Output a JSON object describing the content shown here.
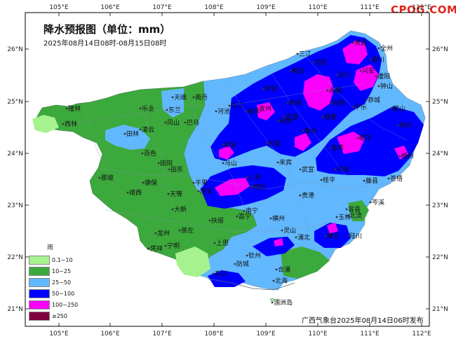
{
  "brand": "CPQG.COM",
  "map": {
    "title": "降水预报图（单位：mm）",
    "subtitle": "2025年08月14日08时-08月15日08时",
    "issued_by": "广西气象台2025年08月14日06时发布",
    "lon_labels": [
      "105°E",
      "106°E",
      "107°E",
      "108°E",
      "109°E",
      "110°E",
      "111°E",
      "112°E"
    ],
    "lat_labels": [
      "26°N",
      "25°N",
      "24°N",
      "23°N",
      "22°N",
      "21°N"
    ],
    "legend": {
      "title": "雨",
      "items": [
        {
          "label": "0.1~10",
          "color": "#a6f28f"
        },
        {
          "label": "10~25",
          "color": "#3ca93c"
        },
        {
          "label": "25~50",
          "color": "#62b8ff"
        },
        {
          "label": "50~100",
          "color": "#0000fe"
        },
        {
          "label": "100~250",
          "color": "#fa00fa"
        },
        {
          "label": "≥250",
          "color": "#800040"
        }
      ]
    },
    "cities": [
      {
        "name": "资源"
      },
      {
        "name": "全州"
      },
      {
        "name": "三江"
      },
      {
        "name": "龙胜"
      },
      {
        "name": "兴安"
      },
      {
        "name": "融安"
      },
      {
        "name": "灵川"
      },
      {
        "name": "南丹"
      },
      {
        "name": "天峨"
      },
      {
        "name": "环江"
      },
      {
        "name": "罗城"
      },
      {
        "name": "永福"
      },
      {
        "name": "阳朔"
      },
      {
        "name": "东兰"
      },
      {
        "name": "河池"
      },
      {
        "name": "宜州"
      },
      {
        "name": "柳城"
      },
      {
        "name": "鹿寨"
      },
      {
        "name": "平乐"
      },
      {
        "name": "恭城"
      },
      {
        "name": "隆林"
      },
      {
        "name": "乐业"
      },
      {
        "name": "凤山"
      },
      {
        "name": "巴马"
      },
      {
        "name": "都安"
      },
      {
        "name": "忻城"
      },
      {
        "name": "金秀"
      },
      {
        "name": "蒙山"
      },
      {
        "name": "昭平"
      },
      {
        "name": "贺州"
      },
      {
        "name": "西林"
      },
      {
        "name": "凌云"
      },
      {
        "name": "田林"
      },
      {
        "name": "百色"
      },
      {
        "name": "田阳"
      },
      {
        "name": "田东"
      },
      {
        "name": "平果"
      },
      {
        "name": "马山"
      },
      {
        "name": "上林"
      },
      {
        "name": "来宾"
      },
      {
        "name": "武宣"
      },
      {
        "name": "桂平"
      },
      {
        "name": "平南"
      },
      {
        "name": "藤县"
      },
      {
        "name": "苍梧"
      },
      {
        "name": "梧州"
      },
      {
        "name": "那坡"
      },
      {
        "name": "德保"
      },
      {
        "name": "靖西"
      },
      {
        "name": "天等"
      },
      {
        "name": "隆安"
      },
      {
        "name": "南宁"
      },
      {
        "name": "宾阳"
      },
      {
        "name": "贵港"
      },
      {
        "name": "岑溪"
      },
      {
        "name": "容县"
      },
      {
        "name": "大新"
      },
      {
        "name": "扶绥"
      },
      {
        "name": "邕宁"
      },
      {
        "name": "横州"
      },
      {
        "name": "灵山"
      },
      {
        "name": "玉林"
      },
      {
        "name": "北流"
      },
      {
        "name": "陆川"
      },
      {
        "name": "博白"
      },
      {
        "name": "龙州"
      },
      {
        "name": "崇左"
      },
      {
        "name": "凭祥"
      },
      {
        "name": "宁明"
      },
      {
        "name": "上思"
      },
      {
        "name": "钦州"
      },
      {
        "name": "浦北"
      },
      {
        "name": "防城"
      },
      {
        "name": "东兴"
      },
      {
        "name": "合浦"
      },
      {
        "name": "北海"
      },
      {
        "name": "涠洲岛"
      },
      {
        "name": "融水"
      },
      {
        "name": "柳州"
      },
      {
        "name": "象州"
      },
      {
        "name": "荔浦"
      },
      {
        "name": "富川"
      },
      {
        "name": "钟山"
      },
      {
        "name": "灌阳"
      }
    ]
  }
}
